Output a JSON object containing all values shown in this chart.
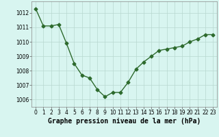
{
  "x": [
    0,
    1,
    2,
    3,
    4,
    5,
    6,
    7,
    8,
    9,
    10,
    11,
    12,
    13,
    14,
    15,
    16,
    17,
    18,
    19,
    20,
    21,
    22,
    23
  ],
  "y": [
    1012.3,
    1011.1,
    1011.1,
    1011.2,
    1009.9,
    1008.5,
    1007.7,
    1007.5,
    1006.7,
    1006.2,
    1006.5,
    1006.5,
    1007.2,
    1008.1,
    1008.6,
    1009.0,
    1009.4,
    1009.5,
    1009.6,
    1009.7,
    1010.0,
    1010.2,
    1010.5,
    1010.5
  ],
  "line_color": "#2d6a2d",
  "marker": "D",
  "marker_size": 2.5,
  "line_width": 1.0,
  "bg_color": "#d8f5f0",
  "grid_color": "#b8d8d0",
  "xlabel": "Graphe pression niveau de la mer (hPa)",
  "xlabel_fontsize": 7.0,
  "tick_fontsize": 5.5,
  "ylim": [
    1005.5,
    1012.8
  ],
  "yticks": [
    1006,
    1007,
    1008,
    1009,
    1010,
    1011,
    1012
  ],
  "xlim": [
    -0.5,
    23.5
  ],
  "xticks": [
    0,
    1,
    2,
    3,
    4,
    5,
    6,
    7,
    8,
    9,
    10,
    11,
    12,
    13,
    14,
    15,
    16,
    17,
    18,
    19,
    20,
    21,
    22,
    23
  ]
}
